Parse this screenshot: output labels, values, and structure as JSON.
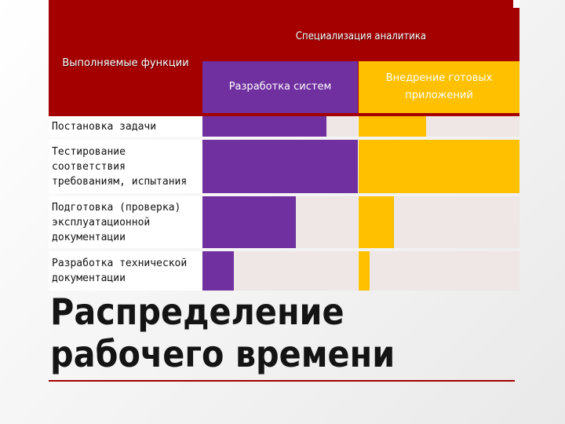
{
  "header": {
    "title": "Специализация аналитика",
    "functions_label": "Выполняемые функции"
  },
  "slide_title": {
    "line1": "Распределение",
    "line2": "рабочего времени"
  },
  "colors": {
    "header_band": "#a40000",
    "purple": "#7030a0",
    "yellow": "#ffc000",
    "cell_bg": "#efe6e6"
  },
  "chart_data": {
    "type": "bar",
    "orientation": "horizontal",
    "title": "Специализация аналитика",
    "row_header": "Выполняемые функции",
    "categories": [
      "Постановка задачи",
      "Тестирование соответствия требованиям, испытания",
      "Подготовка (проверка) эксплуатационной документации",
      "Разработка технической документации"
    ],
    "series": [
      {
        "name": "Разработка систем",
        "color": "#7030a0",
        "values": [
          0.8,
          1.0,
          0.6,
          0.2
        ]
      },
      {
        "name": "Внедрение готовых приложений",
        "color": "#ffc000",
        "values": [
          0.42,
          1.0,
          0.22,
          0.07
        ]
      }
    ],
    "xlim": [
      0,
      1
    ],
    "grid": false,
    "legend": "none"
  }
}
